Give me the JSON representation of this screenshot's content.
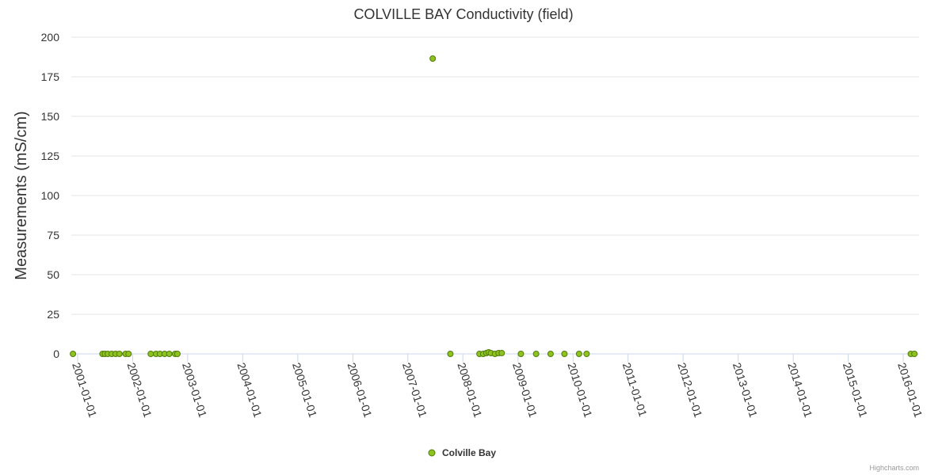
{
  "chart_data": {
    "type": "scatter",
    "title": "COLVILLE BAY Conductivity (field)",
    "ylabel": "Measurements (mS/cm)",
    "xlabel": "",
    "ylim": [
      0,
      200
    ],
    "yticks": [
      0,
      25,
      50,
      75,
      100,
      125,
      150,
      175,
      200
    ],
    "xlim": [
      "2000-11-20",
      "2016-04-15"
    ],
    "xticks": [
      "2001-01-01",
      "2002-01-01",
      "2003-01-01",
      "2004-01-01",
      "2005-01-01",
      "2006-01-01",
      "2007-01-01",
      "2008-01-01",
      "2009-01-01",
      "2010-01-01",
      "2011-01-01",
      "2012-01-01",
      "2013-01-01",
      "2014-01-01",
      "2015-01-01",
      "2016-01-01"
    ],
    "grid": true,
    "legend_position": "bottom-center",
    "colors": {
      "marker": "#90c21f",
      "marker_edge": "#4e7d0a",
      "grid": "#e6e6e6",
      "axis": "#ccd6eb"
    },
    "series": [
      {
        "name": "Colville Bay",
        "points": [
          {
            "x": "2000-12-01",
            "y": 0
          },
          {
            "x": "2001-06-15",
            "y": 0
          },
          {
            "x": "2001-07-01",
            "y": 0
          },
          {
            "x": "2001-07-20",
            "y": 0
          },
          {
            "x": "2001-08-15",
            "y": 0
          },
          {
            "x": "2001-09-10",
            "y": 0
          },
          {
            "x": "2001-10-05",
            "y": 0
          },
          {
            "x": "2001-11-15",
            "y": 0
          },
          {
            "x": "2001-12-05",
            "y": 0
          },
          {
            "x": "2002-05-01",
            "y": 0
          },
          {
            "x": "2002-06-05",
            "y": 0
          },
          {
            "x": "2002-07-01",
            "y": 0
          },
          {
            "x": "2002-08-01",
            "y": 0
          },
          {
            "x": "2002-09-01",
            "y": 0
          },
          {
            "x": "2002-10-10",
            "y": 0
          },
          {
            "x": "2002-10-25",
            "y": 0
          },
          {
            "x": "2007-06-15",
            "y": 186.5
          },
          {
            "x": "2007-10-10",
            "y": 0
          },
          {
            "x": "2008-04-20",
            "y": 0
          },
          {
            "x": "2008-05-15",
            "y": 0
          },
          {
            "x": "2008-06-05",
            "y": 0.5
          },
          {
            "x": "2008-06-20",
            "y": 1
          },
          {
            "x": "2008-07-05",
            "y": 0.5
          },
          {
            "x": "2008-08-01",
            "y": 0
          },
          {
            "x": "2008-08-25",
            "y": 0.5
          },
          {
            "x": "2008-09-15",
            "y": 0.5
          },
          {
            "x": "2009-01-20",
            "y": 0
          },
          {
            "x": "2009-05-01",
            "y": 0
          },
          {
            "x": "2009-08-05",
            "y": 0
          },
          {
            "x": "2009-11-05",
            "y": 0
          },
          {
            "x": "2010-02-10",
            "y": 0
          },
          {
            "x": "2010-04-01",
            "y": 0
          },
          {
            "x": "2016-02-20",
            "y": 0
          },
          {
            "x": "2016-03-15",
            "y": 0
          }
        ]
      }
    ],
    "credit": "Highcharts.com"
  }
}
